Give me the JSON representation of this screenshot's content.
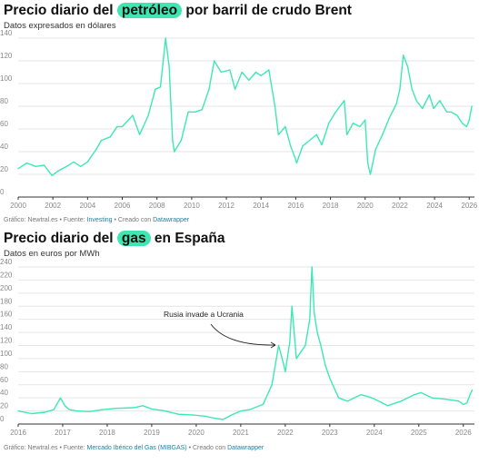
{
  "colors": {
    "line": "#3ee8b5",
    "highlight": "#3fe6b1",
    "link": "#1d81a2"
  },
  "chart_data": [
    {
      "type": "line",
      "title_pre": "Precio diario del ",
      "title_hl": "petróleo",
      "title_post": " por barril de crudo Brent",
      "subtitle": "Datos expresados en dólares",
      "source": {
        "prefix": "Gráfico: Newtral.es • Fuente: ",
        "link": "Investing",
        "mid": " • Creado con ",
        "tool": "Datawrapper"
      },
      "xlim": [
        2000,
        2026.3
      ],
      "ylim": [
        0,
        140
      ],
      "xticks": [
        "2000",
        "2002",
        "2004",
        "2006",
        "2008",
        "2010",
        "2012",
        "2014",
        "2016",
        "2018",
        "2020",
        "2022",
        "2024",
        "2026"
      ],
      "yticks": [
        "0",
        "20",
        "40",
        "60",
        "80",
        "100",
        "120",
        "140"
      ],
      "grid": true,
      "series": [
        {
          "x": [
            2000.0,
            2000.5,
            2001.0,
            2001.5,
            2001.95,
            2002.3,
            2002.8,
            2003.2,
            2003.6,
            2004.0,
            2004.5,
            2004.8,
            2005.3,
            2005.7,
            2006.0,
            2006.6,
            2007.0,
            2007.5,
            2007.9,
            2008.2,
            2008.5,
            2008.7,
            2008.9,
            2009.0,
            2009.4,
            2009.8,
            2010.2,
            2010.6,
            2011.0,
            2011.3,
            2011.7,
            2012.2,
            2012.5,
            2012.9,
            2013.3,
            2013.7,
            2014.0,
            2014.45,
            2014.8,
            2015.0,
            2015.4,
            2015.7,
            2015.95,
            2016.05,
            2016.4,
            2016.8,
            2017.2,
            2017.5,
            2017.9,
            2018.3,
            2018.8,
            2018.95,
            2019.3,
            2019.7,
            2020.0,
            2020.15,
            2020.3,
            2020.6,
            2021.0,
            2021.4,
            2021.8,
            2022.0,
            2022.2,
            2022.45,
            2022.7,
            2022.95,
            2023.3,
            2023.7,
            2023.95,
            2024.3,
            2024.7,
            2024.95,
            2025.3,
            2025.6,
            2025.85,
            2026.0,
            2026.15
          ],
          "values": [
            25,
            30,
            27,
            28,
            19,
            23,
            27,
            31,
            27,
            31,
            42,
            50,
            53,
            62,
            62,
            72,
            55,
            72,
            95,
            97,
            140,
            115,
            50,
            40,
            50,
            75,
            75,
            77,
            95,
            120,
            110,
            112,
            95,
            110,
            103,
            110,
            107,
            112,
            80,
            55,
            62,
            45,
            35,
            30,
            45,
            50,
            55,
            46,
            65,
            75,
            85,
            55,
            65,
            62,
            68,
            30,
            20,
            42,
            55,
            70,
            82,
            95,
            125,
            115,
            95,
            85,
            78,
            90,
            78,
            85,
            75,
            75,
            72,
            65,
            62,
            68,
            80
          ]
        }
      ]
    },
    {
      "type": "line",
      "title_pre": "Precio diario del ",
      "title_hl": "gas",
      "title_post": " en España",
      "subtitle": "Datos en euros por MWh",
      "source": {
        "prefix": "Gráfico: Newtral.es • Fuente: ",
        "link": "Mercado Ibérico del Gas (MIBGAS)",
        "mid": " • Creado con ",
        "tool": "Datawrapper"
      },
      "annotation": "Rusia invade a Ucrania",
      "xlim": [
        2016,
        2026.25
      ],
      "ylim": [
        0,
        240
      ],
      "xticks": [
        "2016",
        "2017",
        "2018",
        "2019",
        "2020",
        "2021",
        "2022",
        "2023",
        "2024",
        "2025",
        "2026"
      ],
      "yticks": [
        "0",
        "20",
        "40",
        "60",
        "80",
        "100",
        "120",
        "140",
        "160",
        "180",
        "200",
        "220",
        "240"
      ],
      "grid": true,
      "series": [
        {
          "x": [
            2016.0,
            2016.3,
            2016.6,
            2016.8,
            2016.95,
            2017.05,
            2017.15,
            2017.3,
            2017.6,
            2017.9,
            2018.2,
            2018.6,
            2018.8,
            2019.0,
            2019.3,
            2019.6,
            2019.9,
            2020.2,
            2020.4,
            2020.6,
            2020.8,
            2021.0,
            2021.2,
            2021.5,
            2021.7,
            2021.85,
            2021.95,
            2022.0,
            2022.1,
            2022.15,
            2022.25,
            2022.35,
            2022.45,
            2022.55,
            2022.6,
            2022.65,
            2022.72,
            2022.8,
            2022.9,
            2023.0,
            2023.2,
            2023.4,
            2023.7,
            2023.95,
            2024.1,
            2024.3,
            2024.6,
            2024.9,
            2025.05,
            2025.3,
            2025.6,
            2025.9,
            2026.0,
            2026.08,
            2026.15,
            2026.2
          ],
          "values": [
            20,
            16,
            18,
            22,
            40,
            28,
            22,
            20,
            19,
            22,
            24,
            25,
            28,
            23,
            20,
            15,
            14,
            12,
            9,
            7,
            14,
            20,
            22,
            30,
            60,
            120,
            95,
            80,
            125,
            180,
            100,
            110,
            120,
            160,
            240,
            170,
            140,
            120,
            90,
            70,
            40,
            35,
            45,
            40,
            35,
            28,
            35,
            45,
            48,
            40,
            38,
            35,
            30,
            32,
            45,
            52
          ]
        }
      ]
    }
  ]
}
